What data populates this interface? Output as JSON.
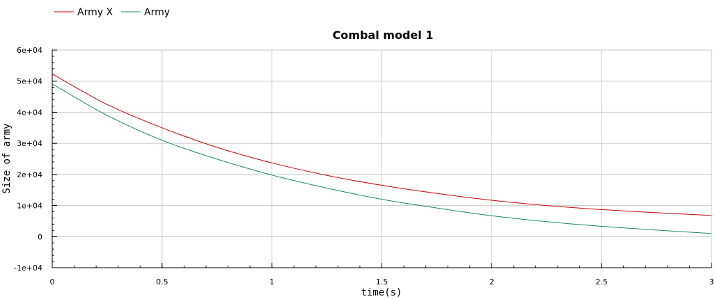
{
  "chart_data": {
    "type": "line",
    "title": "Combal model 1",
    "xlabel": "time(s)",
    "ylabel": "Size of army",
    "xlim": [
      0,
      3
    ],
    "ylim": [
      -10000,
      60000
    ],
    "grid": true,
    "legend_position": "top-left",
    "x_ticks": [
      0,
      0.5,
      1,
      1.5,
      2,
      2.5,
      3
    ],
    "x_tick_labels": [
      "0",
      "0.5",
      "1",
      "1.5",
      "2",
      "2.5",
      "3"
    ],
    "y_ticks": [
      -10000,
      0,
      10000,
      20000,
      30000,
      40000,
      50000,
      60000
    ],
    "y_tick_labels": [
      "-1e+04",
      "0",
      "1e+04",
      "2e+04",
      "3e+04",
      "4e+04",
      "5e+04",
      "6e+04"
    ],
    "x": [
      0,
      0.25,
      0.5,
      0.75,
      1,
      1.25,
      1.5,
      1.75,
      2,
      2.25,
      2.5,
      2.75,
      3
    ],
    "series": [
      {
        "name": "Army X",
        "color": "#cc0000",
        "values": [
          52300,
          42500,
          35000,
          28700,
          23700,
          19700,
          16500,
          13900,
          11700,
          10000,
          8700,
          7700,
          6800
        ]
      },
      {
        "name": "Army",
        "color": "#1a8a5a",
        "values": [
          49100,
          39000,
          31000,
          24900,
          19800,
          15600,
          12000,
          9200,
          6700,
          4800,
          3300,
          2100,
          1000
        ]
      }
    ]
  }
}
